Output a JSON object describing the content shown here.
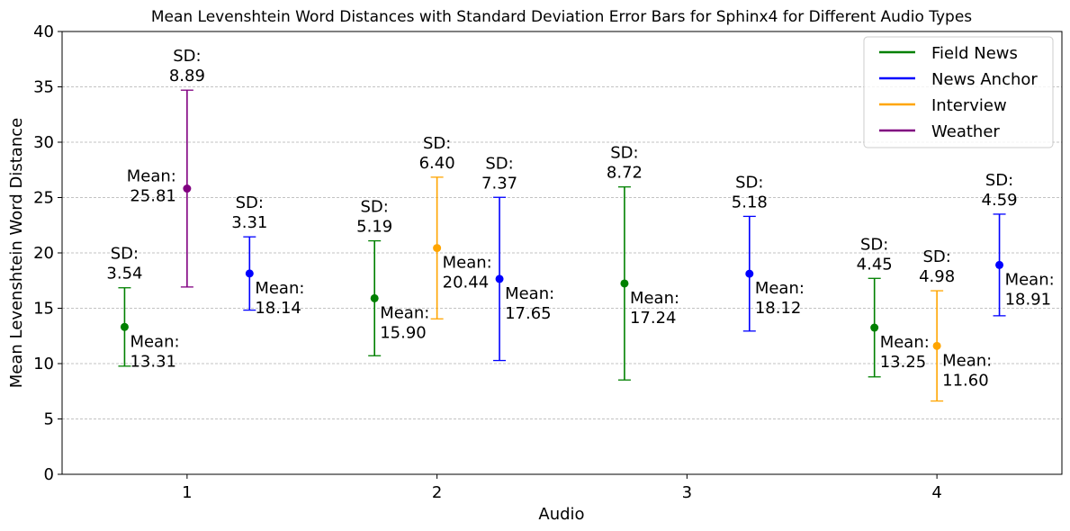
{
  "chart_data": {
    "type": "scatter",
    "title": "Mean Levenshtein Word Distances with Standard Deviation Error Bars for Sphinx4 for Different Audio Types",
    "xlabel": "Audio",
    "ylabel": "Mean Levenshtein Word Distance",
    "xlim": [
      0.5,
      4.5
    ],
    "ylim": [
      0,
      40
    ],
    "xticks": [
      1,
      2,
      3,
      4
    ],
    "xtick_labels": [
      "1",
      "2",
      "3",
      "4"
    ],
    "yticks": [
      0,
      5,
      10,
      15,
      20,
      25,
      30,
      35,
      40
    ],
    "ytick_labels": [
      "0",
      "5",
      "10",
      "15",
      "20",
      "25",
      "30",
      "35",
      "40"
    ],
    "grid": "y-dashed",
    "legend_position": "top-right",
    "series": [
      {
        "name": "Field News",
        "color": "#008000",
        "points": [
          {
            "x": 0.75,
            "mean": 13.31,
            "sd": 3.54,
            "mean_label": "Mean:\n13.31",
            "sd_label": "SD:\n3.54"
          },
          {
            "x": 1.75,
            "mean": 15.9,
            "sd": 5.19,
            "mean_label": "Mean:\n15.90",
            "sd_label": "SD:\n5.19"
          },
          {
            "x": 2.75,
            "mean": 17.24,
            "sd": 8.72,
            "mean_label": "Mean:\n17.24",
            "sd_label": "SD:\n8.72"
          },
          {
            "x": 3.75,
            "mean": 13.25,
            "sd": 4.45,
            "mean_label": "Mean:\n13.25",
            "sd_label": "SD:\n4.45"
          }
        ]
      },
      {
        "name": "News Anchor",
        "color": "#0000ff",
        "points": [
          {
            "x": 1.25,
            "mean": 18.14,
            "sd": 3.31,
            "mean_label": "Mean:\n18.14",
            "sd_label": "SD:\n3.31"
          },
          {
            "x": 2.25,
            "mean": 17.65,
            "sd": 7.37,
            "mean_label": "Mean:\n17.65",
            "sd_label": "SD:\n7.37"
          },
          {
            "x": 3.25,
            "mean": 18.12,
            "sd": 5.18,
            "mean_label": "Mean:\n18.12",
            "sd_label": "SD:\n5.18"
          },
          {
            "x": 4.25,
            "mean": 18.91,
            "sd": 4.59,
            "mean_label": "Mean:\n18.91",
            "sd_label": "SD:\n4.59"
          }
        ]
      },
      {
        "name": "Interview",
        "color": "#ffa500",
        "points": [
          {
            "x": 2.0,
            "mean": 20.44,
            "sd": 6.4,
            "mean_label": "Mean:\n20.44",
            "sd_label": "SD:\n6.40"
          },
          {
            "x": 4.0,
            "mean": 11.6,
            "sd": 4.98,
            "mean_label": "Mean:\n11.60",
            "sd_label": "SD:\n4.98"
          }
        ]
      },
      {
        "name": "Weather",
        "color": "#800080",
        "points": [
          {
            "x": 1.0,
            "mean": 25.81,
            "sd": 8.89,
            "mean_label": "Mean:\n25.81",
            "sd_label": "SD:\n8.89",
            "mean_label_side": "left"
          }
        ]
      }
    ]
  }
}
